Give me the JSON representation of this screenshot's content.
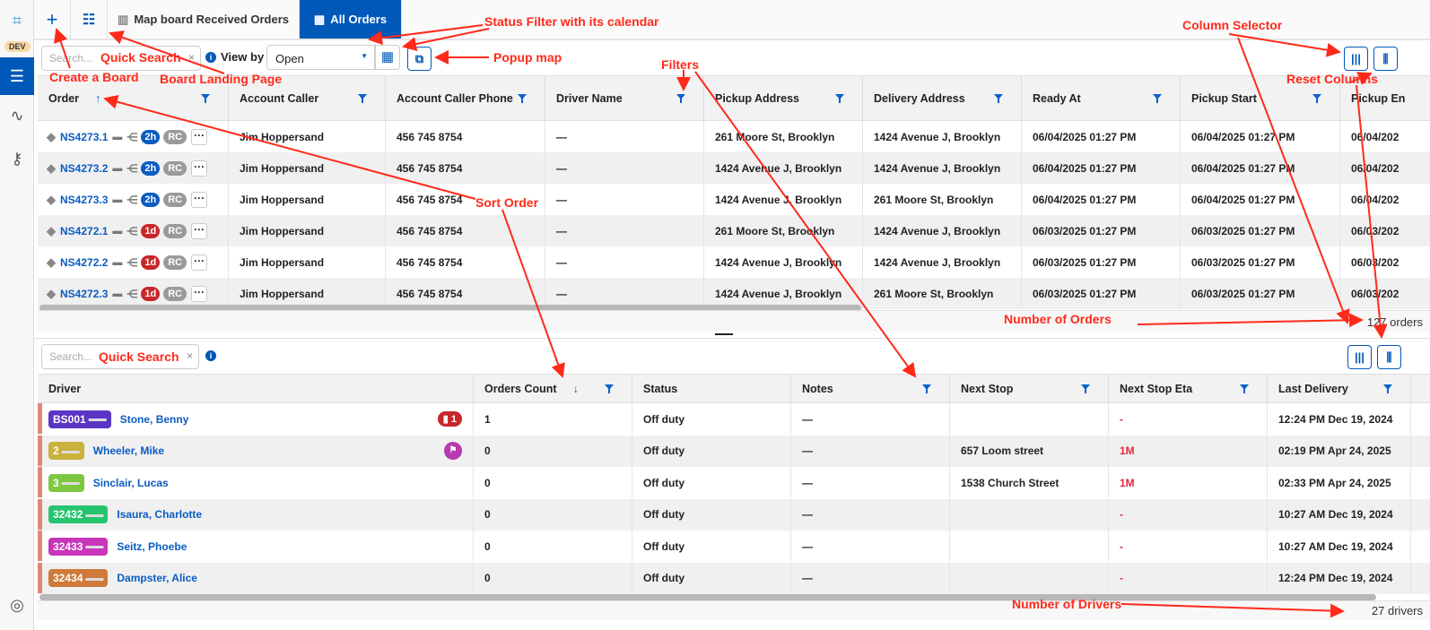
{
  "sidebar": {
    "env_badge": "DEV",
    "items": [
      "logo-icon",
      "board-icon",
      "route-icon",
      "key-icon",
      "help-icon"
    ]
  },
  "tabs": {
    "add": "+",
    "map_board": "Map board Received Orders",
    "all_orders": "All Orders"
  },
  "orders": {
    "search_placeholder": "Search...",
    "view_by_label": "View by",
    "view_by_value": "Open",
    "columns": [
      "Order",
      "Account Caller",
      "Account Caller Phone",
      "Driver Name",
      "Pickup Address",
      "Delivery Address",
      "Ready At",
      "Pickup Start",
      "Pickup En"
    ],
    "rows": [
      {
        "order": "NS4273.1",
        "age": "2h",
        "age_color": "#0a5cc2",
        "tag": "RC",
        "caller": "Jim Hoppersand",
        "phone": "456 745 8754",
        "driver": "—",
        "pickup": "261 Moore St, Brooklyn",
        "delivery": "1424 Avenue J, Brooklyn",
        "ready": "06/04/2025 01:27 PM",
        "pstart": "06/04/2025 01:27 PM",
        "pend": "06/04/202"
      },
      {
        "order": "NS4273.2",
        "age": "2h",
        "age_color": "#0a5cc2",
        "tag": "RC",
        "caller": "Jim Hoppersand",
        "phone": "456 745 8754",
        "driver": "—",
        "pickup": "1424 Avenue J, Brooklyn",
        "delivery": "1424 Avenue J, Brooklyn",
        "ready": "06/04/2025 01:27 PM",
        "pstart": "06/04/2025 01:27 PM",
        "pend": "06/04/202"
      },
      {
        "order": "NS4273.3",
        "age": "2h",
        "age_color": "#0a5cc2",
        "tag": "RC",
        "caller": "Jim Hoppersand",
        "phone": "456 745 8754",
        "driver": "—",
        "pickup": "1424 Avenue J, Brooklyn",
        "delivery": "261 Moore St, Brooklyn",
        "ready": "06/04/2025 01:27 PM",
        "pstart": "06/04/2025 01:27 PM",
        "pend": "06/04/202"
      },
      {
        "order": "NS4272.1",
        "age": "1d",
        "age_color": "#c8262a",
        "tag": "RC",
        "caller": "Jim Hoppersand",
        "phone": "456 745 8754",
        "driver": "—",
        "pickup": "261 Moore St, Brooklyn",
        "delivery": "1424 Avenue J, Brooklyn",
        "ready": "06/03/2025 01:27 PM",
        "pstart": "06/03/2025 01:27 PM",
        "pend": "06/03/202"
      },
      {
        "order": "NS4272.2",
        "age": "1d",
        "age_color": "#c8262a",
        "tag": "RC",
        "caller": "Jim Hoppersand",
        "phone": "456 745 8754",
        "driver": "—",
        "pickup": "1424 Avenue J, Brooklyn",
        "delivery": "1424 Avenue J, Brooklyn",
        "ready": "06/03/2025 01:27 PM",
        "pstart": "06/03/2025 01:27 PM",
        "pend": "06/03/202"
      },
      {
        "order": "NS4272.3",
        "age": "1d",
        "age_color": "#c8262a",
        "tag": "RC",
        "caller": "Jim Hoppersand",
        "phone": "456 745 8754",
        "driver": "—",
        "pickup": "1424 Avenue J, Brooklyn",
        "delivery": "261 Moore St, Brooklyn",
        "ready": "06/03/2025 01:27 PM",
        "pstart": "06/03/2025 01:27 PM",
        "pend": "06/03/202"
      }
    ],
    "count": "127 orders"
  },
  "drivers": {
    "search_placeholder": "Search...",
    "columns": [
      "Driver",
      "Orders Count",
      "Status",
      "Notes",
      "Next Stop",
      "Next Stop Eta",
      "Last Delivery"
    ],
    "rows": [
      {
        "code": "BS001",
        "color": "#5a35c4",
        "name": "Stone, Benny",
        "indicator": "1",
        "indicator_type": "orders",
        "count": "1",
        "status": "Off duty",
        "notes": "—",
        "next_stop": "",
        "eta": "-",
        "last": "12:24 PM Dec 19, 2024"
      },
      {
        "code": "2",
        "color": "#c9b23e",
        "name": "Wheeler, Mike",
        "indicator": "",
        "indicator_type": "flag",
        "count": "0",
        "status": "Off duty",
        "notes": "—",
        "next_stop": "657 Loom street",
        "eta": "1M",
        "last": "02:19 PM Apr 24, 2025"
      },
      {
        "code": "3",
        "color": "#7ec841",
        "name": "Sinclair, Lucas",
        "indicator": "",
        "indicator_type": "",
        "count": "0",
        "status": "Off duty",
        "notes": "—",
        "next_stop": "1538 Church Street",
        "eta": "1M",
        "last": "02:33 PM Apr 24, 2025"
      },
      {
        "code": "32432",
        "color": "#26c46f",
        "name": "Isaura, Charlotte",
        "indicator": "",
        "indicator_type": "",
        "count": "0",
        "status": "Off duty",
        "notes": "—",
        "next_stop": "",
        "eta": "-",
        "last": "10:27 AM Dec 19, 2024"
      },
      {
        "code": "32433",
        "color": "#c935b8",
        "name": "Seitz, Phoebe",
        "indicator": "",
        "indicator_type": "",
        "count": "0",
        "status": "Off duty",
        "notes": "—",
        "next_stop": "",
        "eta": "-",
        "last": "10:27 AM Dec 19, 2024"
      },
      {
        "code": "32434",
        "color": "#cf7a3a",
        "name": "Dampster, Alice",
        "indicator": "",
        "indicator_type": "",
        "count": "0",
        "status": "Off duty",
        "notes": "—",
        "next_stop": "",
        "eta": "-",
        "last": "12:24 PM Dec 19, 2024"
      }
    ],
    "count": "27 drivers"
  },
  "annotations": {
    "status_filter": "Status Filter with its calendar",
    "quick_search_top": "Quick Search",
    "create_board": "Create a Board",
    "landing": "Board Landing Page",
    "popup_map": "Popup map",
    "filters": "Filters",
    "column_selector": "Column Selector",
    "reset_columns": "Reset Columns",
    "sort_order": "Sort Order",
    "num_orders": "Number of Orders",
    "quick_search_bottom": "Quick Search",
    "num_drivers": "Number of Drivers"
  },
  "colors": {
    "accent": "#0058b8",
    "annotation": "#ff2a1a"
  }
}
